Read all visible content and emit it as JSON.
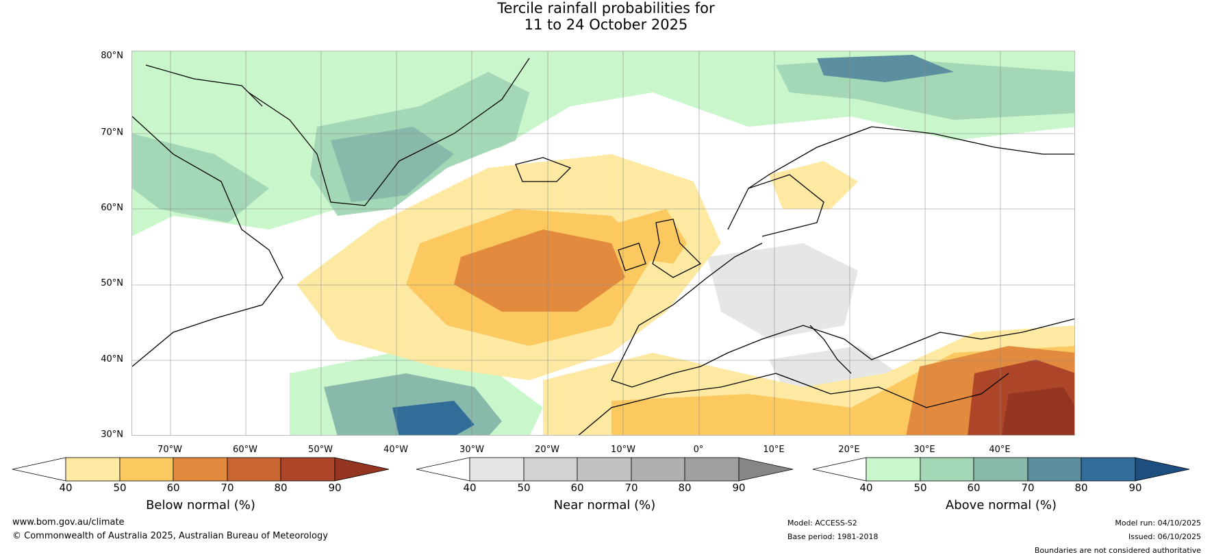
{
  "title": {
    "line1": "Tercile rainfall probabilities for",
    "line2": "11 to 24 October 2025"
  },
  "map": {
    "region": "North Atlantic and Europe",
    "lat_labels": [
      "80°N",
      "70°N",
      "60°N",
      "50°N",
      "40°N",
      "30°N"
    ],
    "lon_labels": [
      "70°W",
      "60°W",
      "50°W",
      "40°W",
      "30°W",
      "20°W",
      "10°W",
      "0°",
      "10°E",
      "20°E",
      "30°E",
      "40°E"
    ]
  },
  "colorbars": [
    {
      "id": "below",
      "title": "Below normal (%)",
      "ticks": [
        "40",
        "50",
        "60",
        "70",
        "80",
        "90"
      ],
      "colors": [
        "#ffffff",
        "#fde9a1",
        "#fcc960",
        "#e28b3e",
        "#c96530",
        "#ad4628",
        "#933520"
      ]
    },
    {
      "id": "near",
      "title": "Near normal (%)",
      "ticks": [
        "40",
        "50",
        "60",
        "70",
        "80",
        "90"
      ],
      "colors": [
        "#ffffff",
        "#e6e6e6",
        "#d2d2d2",
        "#c2c2c2",
        "#b0b0b0",
        "#a0a0a0",
        "#868686"
      ]
    },
    {
      "id": "above",
      "title": "Above normal (%)",
      "ticks": [
        "40",
        "50",
        "60",
        "70",
        "80",
        "90"
      ],
      "colors": [
        "#ffffff",
        "#c9f6cb",
        "#a3d7b5",
        "#88b9ab",
        "#5b8e9f",
        "#326c99",
        "#1c4e80"
      ]
    }
  ],
  "footer": {
    "website": "www.bom.gov.au/climate",
    "copyright": "© Commonwealth of Australia 2025, Australian Bureau of Meteorology",
    "model": "Model: ACCESS-S2",
    "base_period": "Base period: 1981-2018",
    "model_run": "Model run: 04/10/2025",
    "issued": "Issued: 06/10/2025",
    "disclaimer": "Boundaries are not considered authoritative"
  }
}
